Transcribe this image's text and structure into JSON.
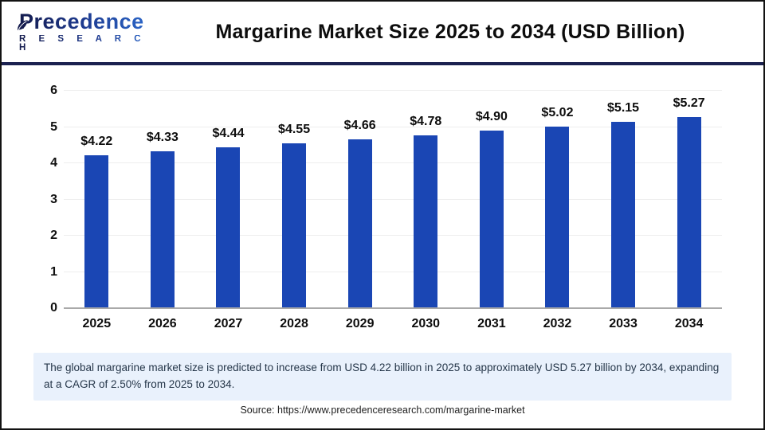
{
  "header": {
    "logo": {
      "name": "Precedence",
      "subtitle": "R E S E A R C H"
    },
    "title": "Margarine Market Size 2025 to 2034 (USD Billion)"
  },
  "chart_data": {
    "type": "bar",
    "title": "Margarine Market Size 2025 to 2034 (USD Billion)",
    "categories": [
      "2025",
      "2026",
      "2027",
      "2028",
      "2029",
      "2030",
      "2031",
      "2032",
      "2033",
      "2034"
    ],
    "values": [
      4.22,
      4.33,
      4.44,
      4.55,
      4.66,
      4.78,
      4.9,
      5.02,
      5.15,
      5.27
    ],
    "labels": [
      "$4.22",
      "$4.33",
      "$4.44",
      "$4.55",
      "$4.66",
      "$4.78",
      "$4.90",
      "$5.02",
      "$5.15",
      "$5.27"
    ],
    "xlabel": "",
    "ylabel": "",
    "ylim": [
      0,
      6
    ],
    "yticks": [
      0,
      1,
      2,
      3,
      4,
      5,
      6
    ],
    "grid": true,
    "legend": false,
    "bar_color": "#1a46b4"
  },
  "note": {
    "text": "The global margarine market size is predicted to increase from USD 4.22 billion in 2025 to approximately USD 5.27 billion by 2034, expanding at a CAGR of 2.50% from 2025 to 2034."
  },
  "source": {
    "text": "Source: https://www.precedenceresearch.com/margarine-market"
  },
  "colors": {
    "bar": "#1a46b4",
    "header_divider": "#1b2150",
    "note_background": "#e9f1fc",
    "gridline": "#eeeeee",
    "baseline": "#a9a9a9"
  }
}
